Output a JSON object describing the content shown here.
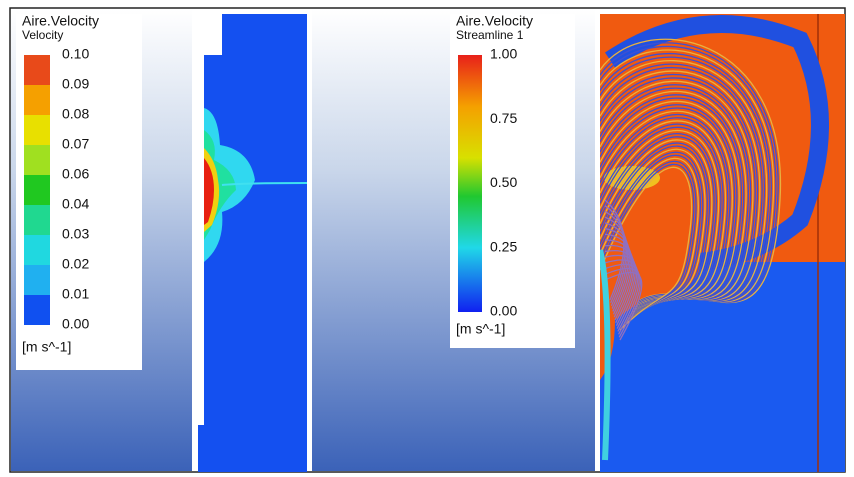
{
  "panels": [
    {
      "legend": {
        "title": "Aire.Velocity",
        "subtitle": "Velocity",
        "ticks": [
          "0.10",
          "0.09",
          "0.08",
          "0.07",
          "0.06",
          "0.04",
          "0.03",
          "0.02",
          "0.01",
          "0.00"
        ],
        "unit": "[m s^-1]"
      }
    },
    {
      "legend": {
        "title": "Aire.Velocity",
        "subtitle": "Streamline 1",
        "ticks": [
          "1.00",
          "0.75",
          "0.50",
          "0.25",
          "0.00"
        ],
        "unit": "[m s^-1]"
      }
    }
  ]
}
